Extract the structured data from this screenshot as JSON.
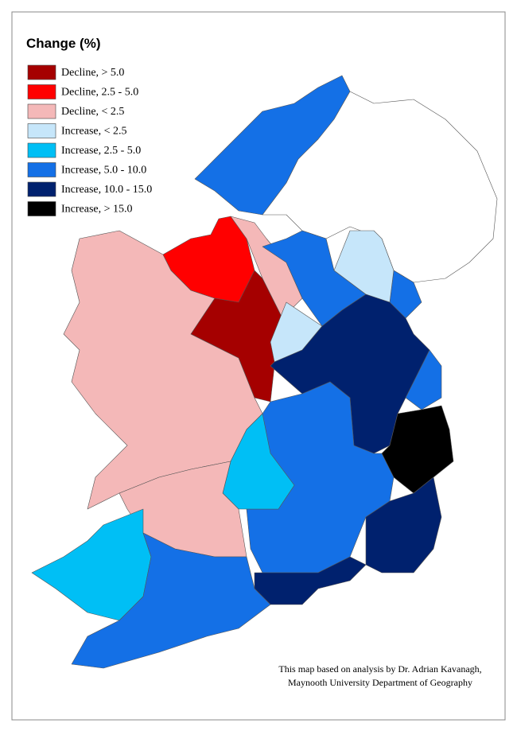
{
  "legend": {
    "title": "Change (%)",
    "items": [
      {
        "label": "Decline, > 5.0",
        "color": "#a50000"
      },
      {
        "label": "Decline, 2.5 - 5.0",
        "color": "#ff0000"
      },
      {
        "label": "Decline, < 2.5",
        "color": "#f4b8b8"
      },
      {
        "label": "Increase, < 2.5",
        "color": "#c6e6fa"
      },
      {
        "label": "Increase, 2.5 - 5.0",
        "color": "#00bff5"
      },
      {
        "label": "Increase, 5.0 - 10.0",
        "color": "#1470e6"
      },
      {
        "label": "Increase, 10.0 - 15.0",
        "color": "#00216e"
      },
      {
        "label": "Increase, > 15.0",
        "color": "#000000"
      }
    ]
  },
  "credit": [
    "This map based on analysis by Dr. Adrian Kavanagh,",
    "Maynooth University Department of Geography"
  ]
}
